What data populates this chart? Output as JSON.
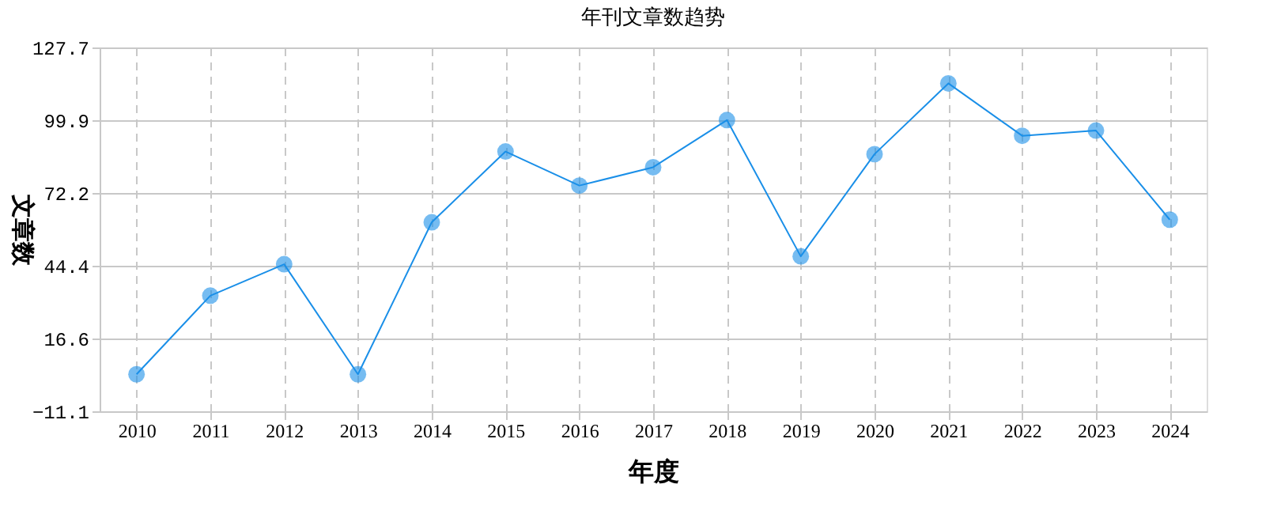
{
  "chart_data": {
    "type": "line",
    "title": "年刊文章数趋势",
    "xlabel": "年度",
    "ylabel": "文章数",
    "categories": [
      "2010",
      "2011",
      "2012",
      "2013",
      "2014",
      "2015",
      "2016",
      "2017",
      "2018",
      "2019",
      "2020",
      "2021",
      "2022",
      "2023",
      "2024"
    ],
    "series": [
      {
        "color": "#1a8fe8",
        "values": [
          3,
          33,
          45,
          3,
          61,
          88,
          75,
          82,
          100,
          48,
          87,
          114,
          94,
          96,
          62
        ]
      }
    ],
    "ylim": [
      -11.1,
      127.7
    ],
    "yticks": [
      -11.1,
      16.6,
      44.4,
      72.2,
      99.9,
      127.7
    ],
    "grid": true,
    "marker": "circle",
    "line_style": "solid"
  }
}
